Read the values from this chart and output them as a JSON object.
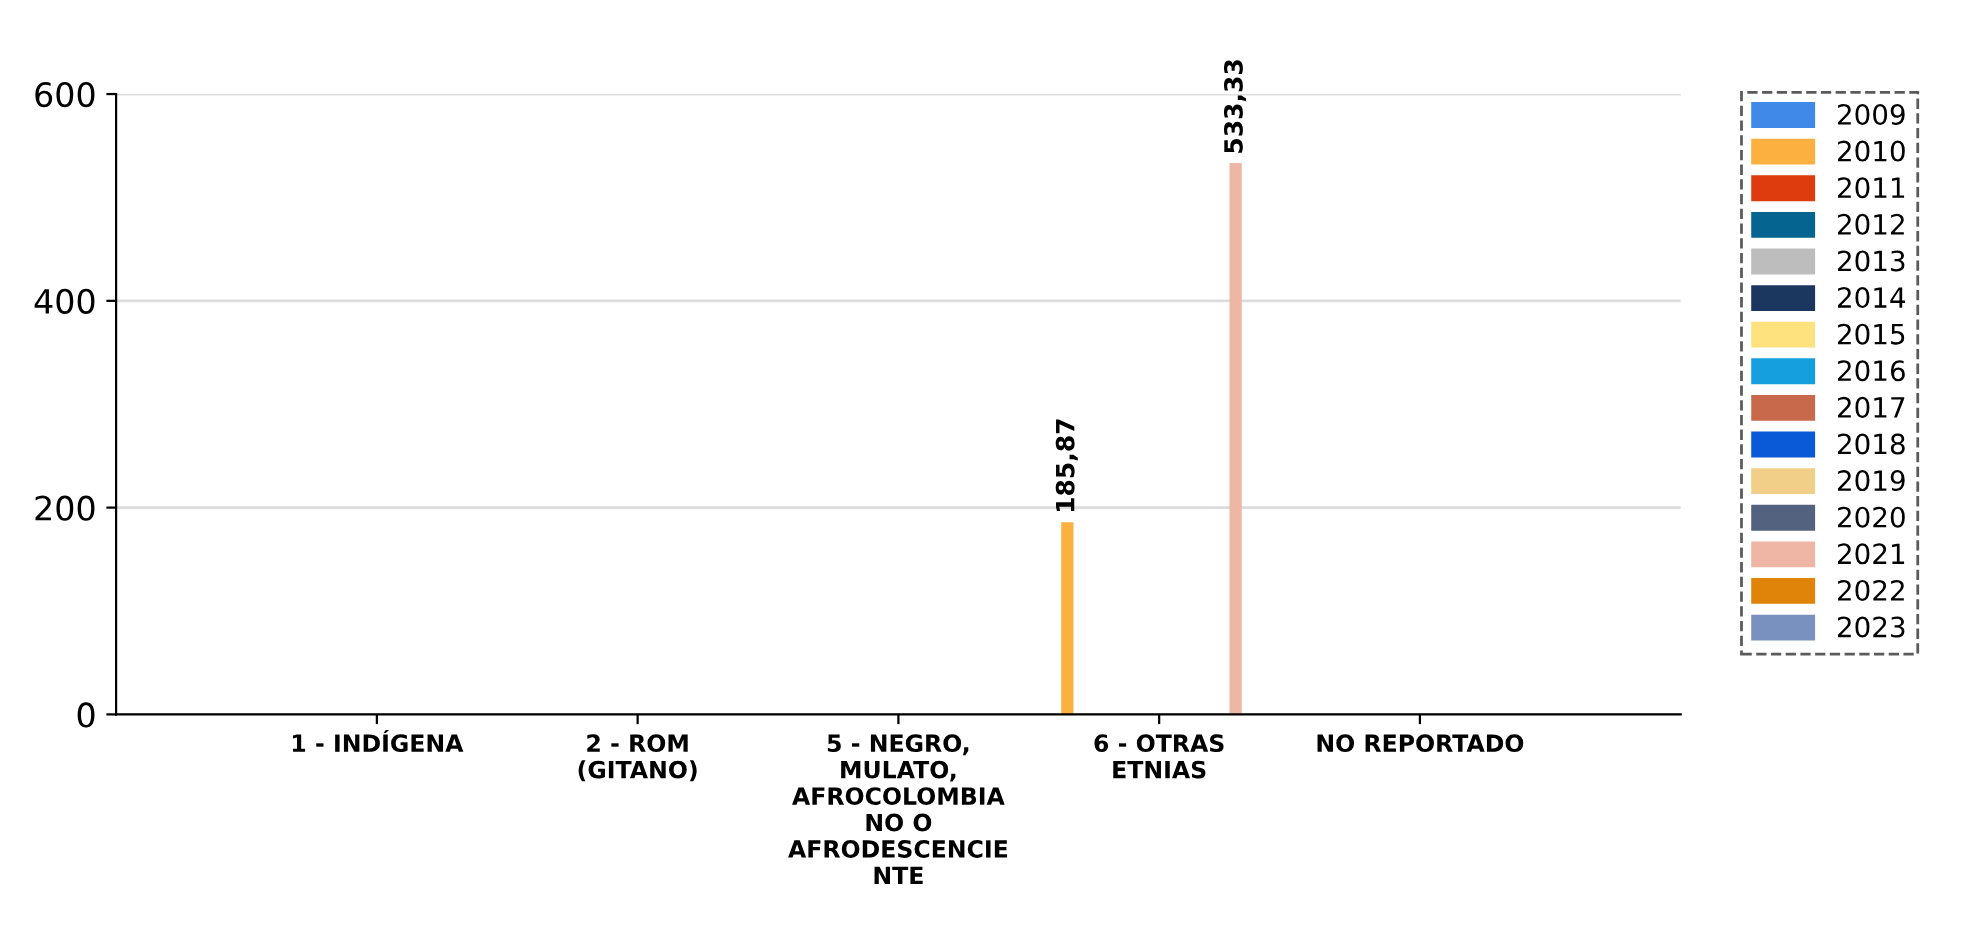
{
  "chart_data": {
    "type": "bar",
    "categories": [
      "1 - INDÍGENA",
      "2 - ROM\n(GITANO)",
      "5 - NEGRO,\nMULATO,\nAFROCOLOMBIA\nNO O\nAFRODESCENCIE\nNTE",
      "6 - OTRAS\nETNIAS",
      "NO REPORTADO"
    ],
    "series": [
      {
        "name": "2009",
        "color": "#4189e8",
        "values": [
          null,
          null,
          null,
          null,
          null
        ]
      },
      {
        "name": "2010",
        "color": "#fbb040",
        "values": [
          null,
          null,
          null,
          185.87,
          null
        ],
        "value_labels": [
          null,
          null,
          null,
          "185,87",
          null
        ]
      },
      {
        "name": "2011",
        "color": "#de3c0e",
        "values": [
          null,
          null,
          null,
          null,
          null
        ]
      },
      {
        "name": "2012",
        "color": "#066590",
        "values": [
          null,
          null,
          null,
          null,
          null
        ]
      },
      {
        "name": "2013",
        "color": "#bdbdbd",
        "values": [
          null,
          null,
          null,
          null,
          null
        ]
      },
      {
        "name": "2014",
        "color": "#1b365f",
        "values": [
          null,
          null,
          null,
          null,
          null
        ]
      },
      {
        "name": "2015",
        "color": "#fde27e",
        "values": [
          null,
          null,
          null,
          null,
          null
        ]
      },
      {
        "name": "2016",
        "color": "#169fdf",
        "values": [
          null,
          null,
          null,
          null,
          null
        ]
      },
      {
        "name": "2017",
        "color": "#c9694b",
        "values": [
          null,
          null,
          null,
          null,
          null
        ]
      },
      {
        "name": "2018",
        "color": "#0a5ad8",
        "values": [
          null,
          null,
          null,
          null,
          null
        ]
      },
      {
        "name": "2019",
        "color": "#f1cf88",
        "values": [
          null,
          null,
          null,
          null,
          null
        ]
      },
      {
        "name": "2020",
        "color": "#53627f",
        "values": [
          null,
          null,
          null,
          null,
          null
        ]
      },
      {
        "name": "2021",
        "color": "#efb6a5",
        "values": [
          null,
          null,
          null,
          533.33,
          null
        ],
        "value_labels": [
          null,
          null,
          null,
          "533,33",
          null
        ]
      },
      {
        "name": "2022",
        "color": "#df8309",
        "values": [
          null,
          null,
          null,
          null,
          null
        ]
      },
      {
        "name": "2023",
        "color": "#7991bf",
        "values": [
          null,
          null,
          null,
          null,
          null
        ]
      }
    ],
    "ylim": [
      0,
      600
    ],
    "yticks": [
      0,
      200,
      400,
      600
    ],
    "grid": "y",
    "legend": "right"
  }
}
